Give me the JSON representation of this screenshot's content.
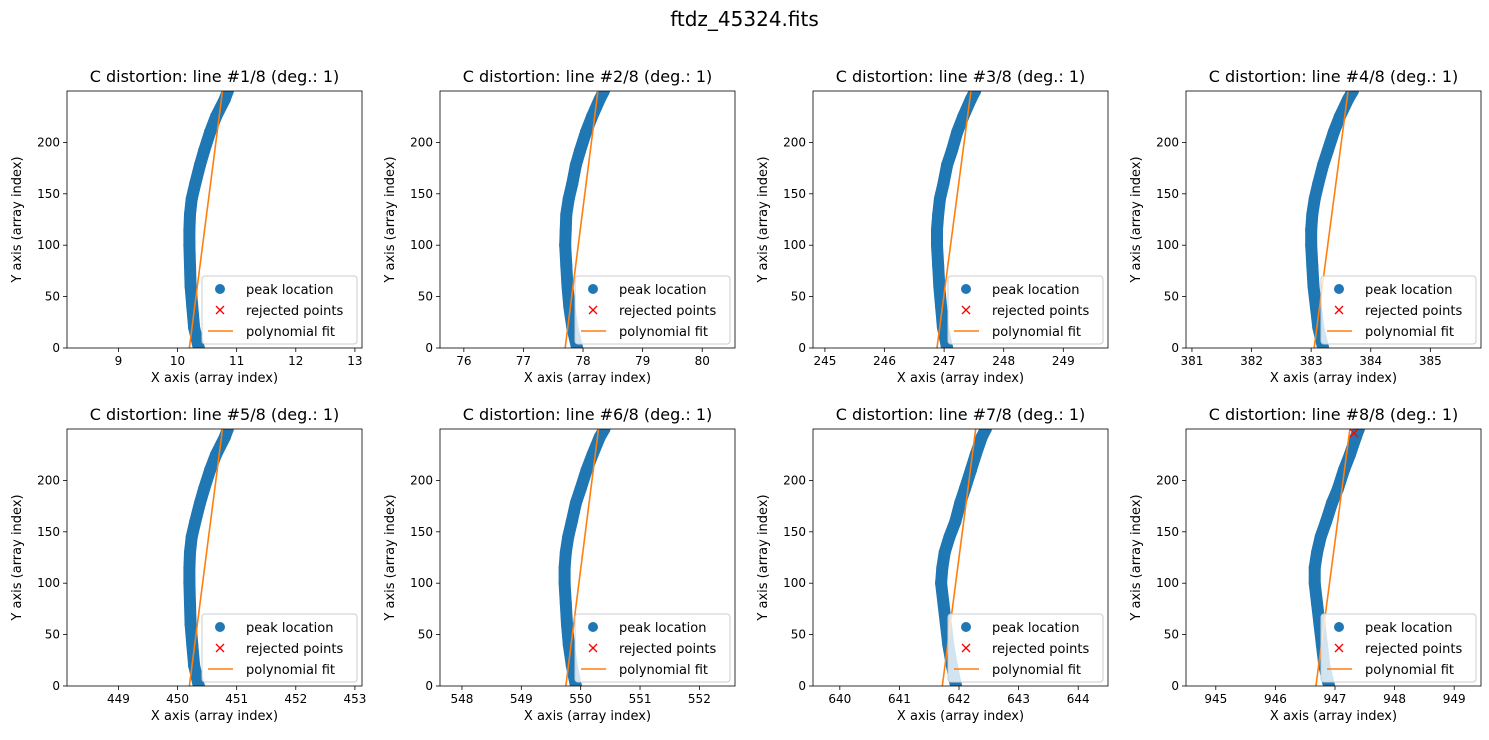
{
  "figure_title": "ftdz_45324.fits",
  "colors": {
    "peak": "#1f77b4",
    "rejected": "#ff0000",
    "fit": "#ff7f0e"
  },
  "chart_data": [
    {
      "type": "scatter",
      "title": "C distortion: line #1/8 (deg.: 1)",
      "xlabel": "X axis (array index)",
      "ylabel": "Y axis (array index)",
      "xlim": [
        8.13,
        13.12
      ],
      "ylim": [
        0,
        250
      ],
      "xticks": [
        9,
        10,
        11,
        12,
        13
      ],
      "xtick_labels": [
        "9",
        "10",
        "11",
        "12",
        "13"
      ],
      "yticks": [
        0,
        50,
        100,
        150,
        200
      ],
      "ytick_labels": [
        "0",
        "50",
        "100",
        "150",
        "200"
      ],
      "legend": {
        "placement": "lower-right",
        "entries": [
          "peak location",
          "rejected points",
          "polynomial fit"
        ]
      },
      "fit_line": [
        [
          10.2,
          0
        ],
        [
          10.76,
          250
        ]
      ],
      "peak_path": [
        [
          10.36,
          0
        ],
        [
          10.28,
          20
        ],
        [
          10.25,
          40
        ],
        [
          10.22,
          60
        ],
        [
          10.21,
          80
        ],
        [
          10.2,
          100
        ],
        [
          10.2,
          115
        ],
        [
          10.21,
          130
        ],
        [
          10.24,
          145
        ],
        [
          10.3,
          160
        ],
        [
          10.38,
          178
        ],
        [
          10.45,
          192
        ],
        [
          10.55,
          210
        ],
        [
          10.65,
          225
        ],
        [
          10.8,
          242
        ],
        [
          10.85,
          250
        ]
      ]
    },
    {
      "type": "scatter",
      "title": "C distortion: line #2/8 (deg.: 1)",
      "xlabel": "X axis (array index)",
      "ylabel": "Y axis (array index)",
      "xlim": [
        75.6,
        80.55
      ],
      "ylim": [
        0,
        250
      ],
      "xticks": [
        76,
        77,
        78,
        79,
        80
      ],
      "xtick_labels": [
        "76",
        "77",
        "78",
        "79",
        "80"
      ],
      "yticks": [
        0,
        50,
        100,
        150,
        200
      ],
      "ytick_labels": [
        "0",
        "50",
        "100",
        "150",
        "200"
      ],
      "legend": {
        "placement": "lower-right",
        "entries": [
          "peak location",
          "rejected points",
          "polynomial fit"
        ]
      },
      "fit_line": [
        [
          77.7,
          0
        ],
        [
          78.25,
          250
        ]
      ],
      "peak_path": [
        [
          77.9,
          0
        ],
        [
          77.82,
          20
        ],
        [
          77.77,
          40
        ],
        [
          77.74,
          60
        ],
        [
          77.72,
          80
        ],
        [
          77.7,
          100
        ],
        [
          77.71,
          115
        ],
        [
          77.72,
          130
        ],
        [
          77.76,
          145
        ],
        [
          77.82,
          160
        ],
        [
          77.88,
          178
        ],
        [
          77.95,
          192
        ],
        [
          78.05,
          210
        ],
        [
          78.15,
          225
        ],
        [
          78.28,
          242
        ],
        [
          78.35,
          250
        ]
      ]
    },
    {
      "type": "scatter",
      "title": "C distortion: line #3/8 (deg.: 1)",
      "xlabel": "X axis (array index)",
      "ylabel": "Y axis (array index)",
      "xlim": [
        244.8,
        249.75
      ],
      "ylim": [
        0,
        250
      ],
      "xticks": [
        245,
        246,
        247,
        248,
        249
      ],
      "xtick_labels": [
        "245",
        "246",
        "247",
        "248",
        "249"
      ],
      "yticks": [
        0,
        50,
        100,
        150,
        200
      ],
      "ytick_labels": [
        "0",
        "50",
        "100",
        "150",
        "200"
      ],
      "legend": {
        "placement": "lower-right",
        "entries": [
          "peak location",
          "rejected points",
          "polynomial fit"
        ]
      },
      "fit_line": [
        [
          246.88,
          0
        ],
        [
          247.45,
          250
        ]
      ],
      "peak_path": [
        [
          247.05,
          0
        ],
        [
          246.98,
          20
        ],
        [
          246.95,
          40
        ],
        [
          246.92,
          60
        ],
        [
          246.9,
          80
        ],
        [
          246.88,
          100
        ],
        [
          246.88,
          115
        ],
        [
          246.9,
          130
        ],
        [
          246.93,
          145
        ],
        [
          246.99,
          160
        ],
        [
          247.05,
          178
        ],
        [
          247.13,
          192
        ],
        [
          247.22,
          210
        ],
        [
          247.32,
          225
        ],
        [
          247.45,
          242
        ],
        [
          247.52,
          250
        ]
      ]
    },
    {
      "type": "scatter",
      "title": "C distortion: line #4/8 (deg.: 1)",
      "xlabel": "X axis (array index)",
      "ylabel": "Y axis (array index)",
      "xlim": [
        380.9,
        385.85
      ],
      "ylim": [
        0,
        250
      ],
      "xticks": [
        381,
        382,
        383,
        384,
        385
      ],
      "xtick_labels": [
        "381",
        "382",
        "383",
        "384",
        "385"
      ],
      "yticks": [
        0,
        50,
        100,
        150,
        200
      ],
      "ytick_labels": [
        "0",
        "50",
        "100",
        "150",
        "200"
      ],
      "legend": {
        "placement": "lower-right",
        "entries": [
          "peak location",
          "rejected points",
          "polynomial fit"
        ]
      },
      "fit_line": [
        [
          383.05,
          0
        ],
        [
          383.62,
          250
        ]
      ],
      "peak_path": [
        [
          383.2,
          0
        ],
        [
          383.12,
          20
        ],
        [
          383.08,
          40
        ],
        [
          383.04,
          60
        ],
        [
          383.02,
          80
        ],
        [
          383.0,
          100
        ],
        [
          383.0,
          115
        ],
        [
          383.02,
          130
        ],
        [
          383.06,
          145
        ],
        [
          383.12,
          160
        ],
        [
          383.2,
          178
        ],
        [
          383.28,
          192
        ],
        [
          383.38,
          210
        ],
        [
          383.48,
          225
        ],
        [
          383.62,
          242
        ],
        [
          383.7,
          250
        ]
      ]
    },
    {
      "type": "scatter",
      "title": "C distortion: line #5/8 (deg.: 1)",
      "xlabel": "X axis (array index)",
      "ylabel": "Y axis (array index)",
      "xlim": [
        448.13,
        453.12
      ],
      "ylim": [
        0,
        250
      ],
      "xticks": [
        449,
        450,
        451,
        452,
        453
      ],
      "xtick_labels": [
        "449",
        "450",
        "451",
        "452",
        "453"
      ],
      "yticks": [
        0,
        50,
        100,
        150,
        200
      ],
      "ytick_labels": [
        "0",
        "50",
        "100",
        "150",
        "200"
      ],
      "legend": {
        "placement": "lower-right",
        "entries": [
          "peak location",
          "rejected points",
          "polynomial fit"
        ]
      },
      "fit_line": [
        [
          450.2,
          0
        ],
        [
          450.76,
          250
        ]
      ],
      "peak_path": [
        [
          450.36,
          0
        ],
        [
          450.28,
          20
        ],
        [
          450.25,
          40
        ],
        [
          450.22,
          60
        ],
        [
          450.21,
          80
        ],
        [
          450.2,
          100
        ],
        [
          450.2,
          115
        ],
        [
          450.21,
          130
        ],
        [
          450.24,
          145
        ],
        [
          450.3,
          160
        ],
        [
          450.38,
          178
        ],
        [
          450.45,
          192
        ],
        [
          450.55,
          210
        ],
        [
          450.65,
          225
        ],
        [
          450.8,
          242
        ],
        [
          450.85,
          250
        ]
      ]
    },
    {
      "type": "scatter",
      "title": "C distortion: line #6/8 (deg.: 1)",
      "xlabel": "X axis (array index)",
      "ylabel": "Y axis (array index)",
      "xlim": [
        547.63,
        552.6
      ],
      "ylim": [
        0,
        250
      ],
      "xticks": [
        548,
        549,
        550,
        551,
        552
      ],
      "xtick_labels": [
        "548",
        "549",
        "550",
        "551",
        "552"
      ],
      "yticks": [
        0,
        50,
        100,
        150,
        200
      ],
      "ytick_labels": [
        "0",
        "50",
        "100",
        "150",
        "200"
      ],
      "legend": {
        "placement": "lower-right",
        "entries": [
          "peak location",
          "rejected points",
          "polynomial fit"
        ]
      },
      "fit_line": [
        [
          549.75,
          0
        ],
        [
          550.3,
          250
        ]
      ],
      "peak_path": [
        [
          549.92,
          0
        ],
        [
          549.85,
          20
        ],
        [
          549.8,
          40
        ],
        [
          549.77,
          60
        ],
        [
          549.75,
          80
        ],
        [
          549.73,
          100
        ],
        [
          549.73,
          115
        ],
        [
          549.75,
          130
        ],
        [
          549.79,
          145
        ],
        [
          549.85,
          160
        ],
        [
          549.92,
          178
        ],
        [
          550.0,
          192
        ],
        [
          550.1,
          210
        ],
        [
          550.2,
          225
        ],
        [
          550.32,
          242
        ],
        [
          550.4,
          250
        ]
      ]
    },
    {
      "type": "scatter",
      "title": "C distortion: line #7/8 (deg.: 1)",
      "xlabel": "X axis (array index)",
      "ylabel": "Y axis (array index)",
      "xlim": [
        639.55,
        644.5
      ],
      "ylim": [
        0,
        250
      ],
      "xticks": [
        640,
        641,
        642,
        643,
        644
      ],
      "xtick_labels": [
        "640",
        "641",
        "642",
        "643",
        "644"
      ],
      "yticks": [
        0,
        50,
        100,
        150,
        200
      ],
      "ytick_labels": [
        "0",
        "50",
        "100",
        "150",
        "200"
      ],
      "legend": {
        "placement": "lower-right",
        "entries": [
          "peak location",
          "rejected points",
          "polynomial fit"
        ]
      },
      "fit_line": [
        [
          641.72,
          0
        ],
        [
          642.28,
          250
        ]
      ],
      "peak_path": [
        [
          641.95,
          0
        ],
        [
          641.88,
          20
        ],
        [
          641.82,
          40
        ],
        [
          641.78,
          60
        ],
        [
          641.74,
          80
        ],
        [
          641.7,
          100
        ],
        [
          641.72,
          115
        ],
        [
          641.76,
          130
        ],
        [
          641.84,
          145
        ],
        [
          641.94,
          160
        ],
        [
          642.02,
          178
        ],
        [
          642.1,
          192
        ],
        [
          642.2,
          210
        ],
        [
          642.28,
          225
        ],
        [
          642.38,
          242
        ],
        [
          642.45,
          250
        ]
      ]
    },
    {
      "type": "scatter",
      "title": "C distortion: line #8/8 (deg.: 1)",
      "xlabel": "X axis (array index)",
      "ylabel": "Y axis (array index)",
      "xlim": [
        944.5,
        949.45
      ],
      "ylim": [
        0,
        250
      ],
      "xticks": [
        945,
        946,
        947,
        948,
        949
      ],
      "xtick_labels": [
        "945",
        "946",
        "947",
        "948",
        "949"
      ],
      "yticks": [
        0,
        50,
        100,
        150,
        200
      ],
      "ytick_labels": [
        "0",
        "50",
        "100",
        "150",
        "200"
      ],
      "legend": {
        "placement": "lower-right",
        "entries": [
          "peak location",
          "rejected points",
          "polynomial fit"
        ]
      },
      "fit_line": [
        [
          946.68,
          0
        ],
        [
          947.25,
          250
        ]
      ],
      "peak_path": [
        [
          946.9,
          0
        ],
        [
          946.82,
          20
        ],
        [
          946.78,
          40
        ],
        [
          946.74,
          60
        ],
        [
          946.7,
          80
        ],
        [
          946.66,
          100
        ],
        [
          946.66,
          115
        ],
        [
          946.7,
          130
        ],
        [
          946.76,
          145
        ],
        [
          946.85,
          160
        ],
        [
          946.95,
          178
        ],
        [
          947.05,
          192
        ],
        [
          947.15,
          210
        ],
        [
          947.25,
          225
        ],
        [
          947.35,
          242
        ],
        [
          947.4,
          250
        ]
      ],
      "rejected": [
        [
          947.32,
          246
        ]
      ]
    }
  ]
}
